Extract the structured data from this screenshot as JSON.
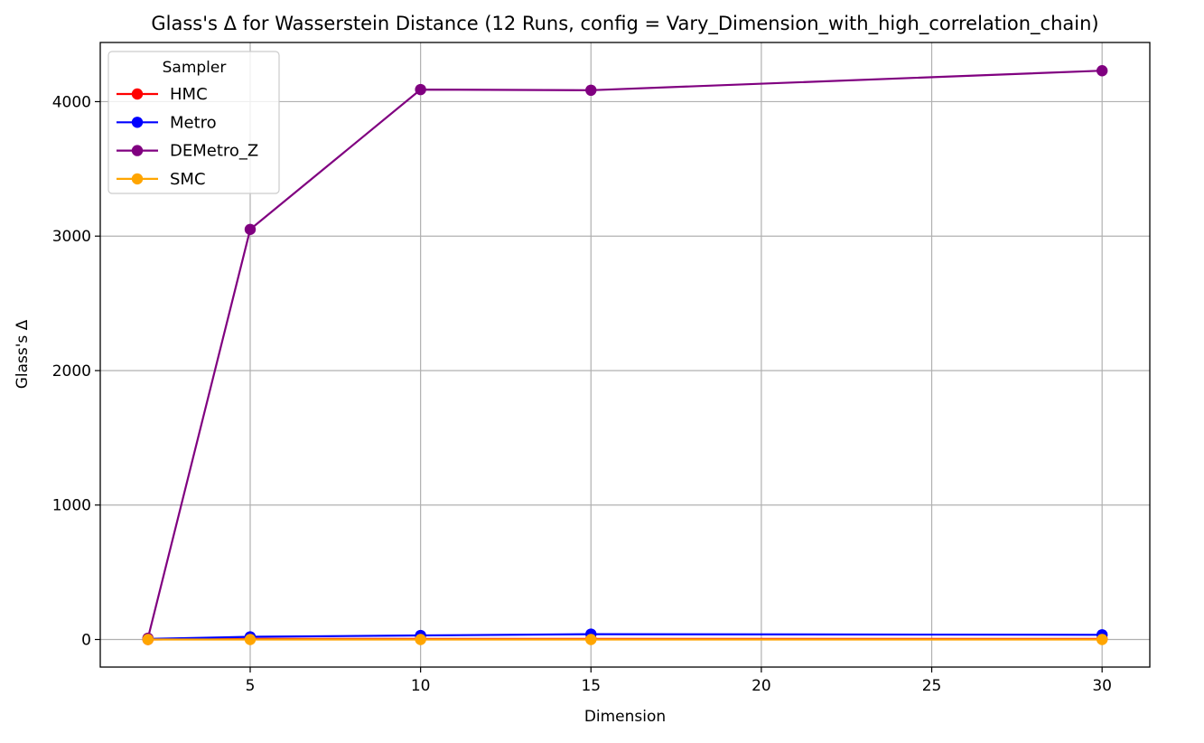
{
  "chart_data": {
    "type": "line",
    "title": "Glass's Δ for Wasserstein Distance (12 Runs, config = Vary_Dimension_with_high_correlation_chain)",
    "xlabel": "Dimension",
    "ylabel": "Glass's Δ",
    "x": [
      2,
      5,
      10,
      15,
      30
    ],
    "xlim": [
      0.6,
      31.4
    ],
    "ylim": [
      -205,
      4440
    ],
    "xticks": [
      5,
      10,
      15,
      20,
      25,
      30
    ],
    "yticks": [
      0,
      1000,
      2000,
      3000,
      4000
    ],
    "grid": true,
    "legend": {
      "title": "Sampler",
      "placement": "top-left"
    },
    "series": [
      {
        "name": "HMC",
        "color": "#ff0000",
        "values": [
          0,
          5,
          5,
          5,
          5
        ]
      },
      {
        "name": "Metro",
        "color": "#0000ff",
        "values": [
          5,
          20,
          30,
          40,
          35
        ]
      },
      {
        "name": "DEMetro_Z",
        "color": "#800080",
        "values": [
          10,
          3050,
          4090,
          4085,
          4230
        ]
      },
      {
        "name": "SMC",
        "color": "#ffa500",
        "values": [
          0,
          0,
          0,
          0,
          0
        ]
      }
    ]
  }
}
